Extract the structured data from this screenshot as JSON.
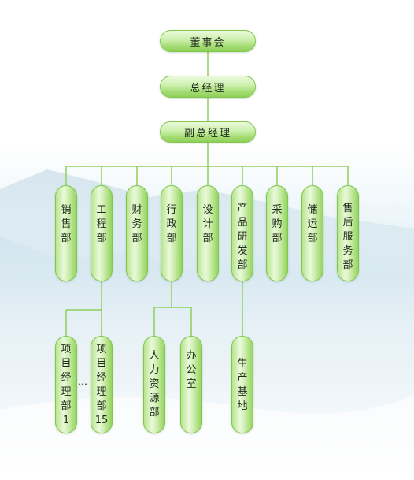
{
  "chart": {
    "top": {
      "chairman": "董事会",
      "gm": "总经理",
      "dgm": "副总经理"
    },
    "departments": [
      "销\n售\n部",
      "工\n程\n部",
      "财\n务\n部",
      "行\n政\n部",
      "设\n计\n部",
      "产\n品\n研\n发\n部",
      "采\n购\n部",
      "储\n运\n部",
      "售\n后\n服\n务\n部"
    ],
    "engineering_sub": [
      "项\n目\n经\n理\n部\n1",
      "项\n目\n经\n理\n部\n15"
    ],
    "engineering_sub_ellipsis": "…",
    "admin_sub": [
      "人\n力\n资\n源\n部",
      "办\n公\n室"
    ],
    "rd_sub": [
      "生\n产\n基\n地"
    ]
  },
  "colors": {
    "connector": "#8fcf5b",
    "border": "#7fc84c",
    "text": "#1f2a18"
  }
}
